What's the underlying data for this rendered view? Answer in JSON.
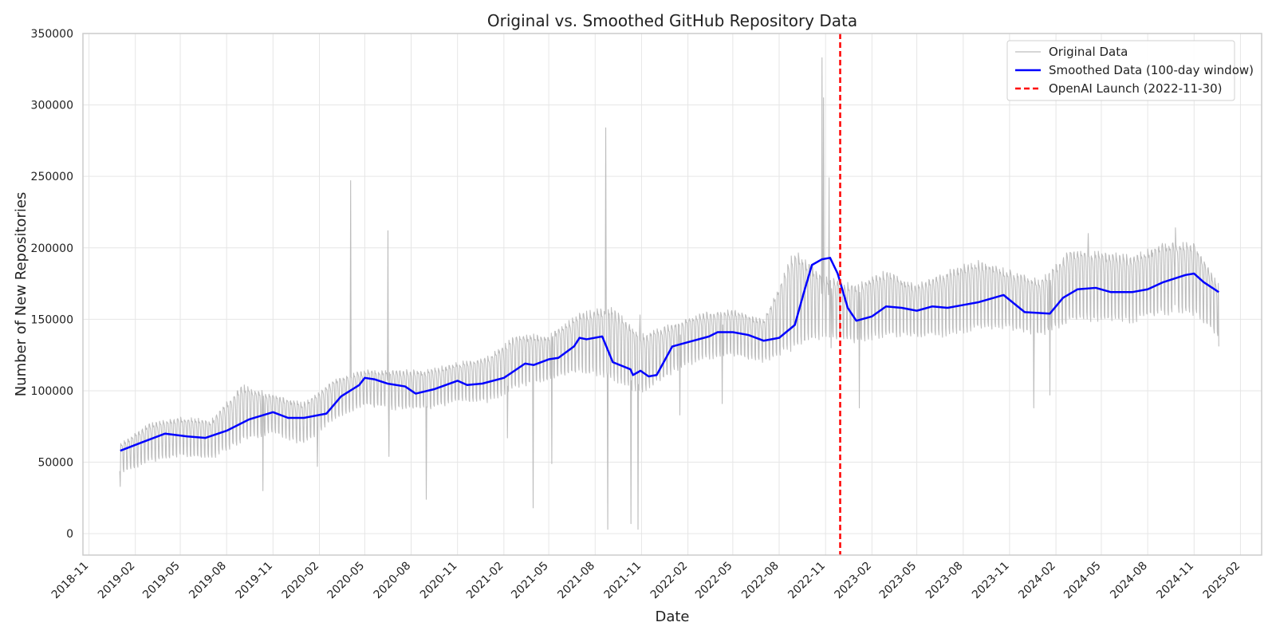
{
  "chart_data": {
    "type": "line",
    "title": "Original vs. Smoothed GitHub Repository Data",
    "xlabel": "Date",
    "ylabel": "Number of New Repositories",
    "x_axis_type": "date",
    "xlim": [
      "2018-10-20",
      "2025-03-15"
    ],
    "ylim": [
      -15000,
      350000
    ],
    "x_ticks": [
      "2018-11",
      "2019-02",
      "2019-05",
      "2019-08",
      "2019-11",
      "2020-02",
      "2020-05",
      "2020-08",
      "2020-11",
      "2021-02",
      "2021-05",
      "2021-08",
      "2021-11",
      "2022-02",
      "2022-05",
      "2022-08",
      "2022-11",
      "2023-02",
      "2023-05",
      "2023-08",
      "2023-11",
      "2024-02",
      "2024-05",
      "2024-08",
      "2024-11",
      "2025-02"
    ],
    "y_ticks": [
      0,
      50000,
      100000,
      150000,
      200000,
      250000,
      300000,
      350000
    ],
    "grid": true,
    "legend": {
      "position": "top-right"
    },
    "series": [
      {
        "name": "Original Data",
        "color": "#bdbdbd",
        "style": "solid",
        "weekly_range": [
          {
            "x": "2019-01-01",
            "low": 40000,
            "high": 63000
          },
          {
            "x": "2019-03-01",
            "low": 48000,
            "high": 78000
          },
          {
            "x": "2019-05-01",
            "low": 52000,
            "high": 82000
          },
          {
            "x": "2019-07-01",
            "low": 50000,
            "high": 80000
          },
          {
            "x": "2019-09-01",
            "low": 62000,
            "high": 105000
          },
          {
            "x": "2019-11-01",
            "low": 68000,
            "high": 98000
          },
          {
            "x": "2020-01-01",
            "low": 60000,
            "high": 92000
          },
          {
            "x": "2020-03-01",
            "low": 78000,
            "high": 108000
          },
          {
            "x": "2020-05-01",
            "low": 88000,
            "high": 115000
          },
          {
            "x": "2020-07-01",
            "low": 85000,
            "high": 115000
          },
          {
            "x": "2020-09-01",
            "low": 85000,
            "high": 115000
          },
          {
            "x": "2020-11-01",
            "low": 90000,
            "high": 120000
          },
          {
            "x": "2021-01-01",
            "low": 90000,
            "high": 125000
          },
          {
            "x": "2021-03-01",
            "low": 100000,
            "high": 140000
          },
          {
            "x": "2021-05-01",
            "low": 105000,
            "high": 140000
          },
          {
            "x": "2021-07-01",
            "low": 110000,
            "high": 155000
          },
          {
            "x": "2021-09-01",
            "low": 105000,
            "high": 160000
          },
          {
            "x": "2021-11-01",
            "low": 95000,
            "high": 140000
          },
          {
            "x": "2022-01-01",
            "low": 110000,
            "high": 148000
          },
          {
            "x": "2022-03-01",
            "low": 120000,
            "high": 155000
          },
          {
            "x": "2022-05-01",
            "low": 122000,
            "high": 158000
          },
          {
            "x": "2022-07-01",
            "low": 118000,
            "high": 150000
          },
          {
            "x": "2022-09-01",
            "low": 125000,
            "high": 200000
          },
          {
            "x": "2022-11-01",
            "low": 135000,
            "high": 180000
          },
          {
            "x": "2023-01-01",
            "low": 130000,
            "high": 175000
          },
          {
            "x": "2023-03-01",
            "low": 135000,
            "high": 185000
          },
          {
            "x": "2023-05-01",
            "low": 135000,
            "high": 175000
          },
          {
            "x": "2023-07-01",
            "low": 135000,
            "high": 185000
          },
          {
            "x": "2023-09-01",
            "low": 140000,
            "high": 192000
          },
          {
            "x": "2023-11-01",
            "low": 140000,
            "high": 185000
          },
          {
            "x": "2024-01-01",
            "low": 135000,
            "high": 178000
          },
          {
            "x": "2024-03-01",
            "low": 145000,
            "high": 200000
          },
          {
            "x": "2024-05-01",
            "low": 145000,
            "high": 198000
          },
          {
            "x": "2024-07-01",
            "low": 145000,
            "high": 195000
          },
          {
            "x": "2024-09-01",
            "low": 150000,
            "high": 205000
          },
          {
            "x": "2024-11-01",
            "low": 150000,
            "high": 205000
          },
          {
            "x": "2024-12-20",
            "low": 135000,
            "high": 175000
          }
        ],
        "spikes": [
          {
            "x": "2019-01-02",
            "y": 33000
          },
          {
            "x": "2019-10-12",
            "y": 30000
          },
          {
            "x": "2020-01-28",
            "y": 47000
          },
          {
            "x": "2020-04-03",
            "y": 247000
          },
          {
            "x": "2020-06-16",
            "y": 212000
          },
          {
            "x": "2020-06-18",
            "y": 54000
          },
          {
            "x": "2020-08-31",
            "y": 24000
          },
          {
            "x": "2021-02-08",
            "y": 67000
          },
          {
            "x": "2021-03-31",
            "y": 18000
          },
          {
            "x": "2021-05-07",
            "y": 49000
          },
          {
            "x": "2021-08-22",
            "y": 284000
          },
          {
            "x": "2021-08-26",
            "y": 3000
          },
          {
            "x": "2021-10-11",
            "y": 7000
          },
          {
            "x": "2021-10-25",
            "y": 3000
          },
          {
            "x": "2021-10-29",
            "y": 153000
          },
          {
            "x": "2022-01-16",
            "y": 83000
          },
          {
            "x": "2022-04-10",
            "y": 91000
          },
          {
            "x": "2022-10-25",
            "y": 333000
          },
          {
            "x": "2022-10-28",
            "y": 305000
          },
          {
            "x": "2022-11-08",
            "y": 249000
          },
          {
            "x": "2022-11-12",
            "y": 130000
          },
          {
            "x": "2023-01-07",
            "y": 88000
          },
          {
            "x": "2023-12-19",
            "y": 88000
          },
          {
            "x": "2024-01-20",
            "y": 97000
          },
          {
            "x": "2024-04-05",
            "y": 210000
          },
          {
            "x": "2024-09-25",
            "y": 214000
          },
          {
            "x": "2024-12-20",
            "y": 131000
          }
        ]
      },
      {
        "name": "Smoothed Data (100-day window)",
        "color": "#0000ff",
        "style": "solid",
        "points": [
          {
            "x": "2019-01-02",
            "y": 58000
          },
          {
            "x": "2019-02-15",
            "y": 64000
          },
          {
            "x": "2019-04-01",
            "y": 70000
          },
          {
            "x": "2019-05-15",
            "y": 68000
          },
          {
            "x": "2019-06-20",
            "y": 67000
          },
          {
            "x": "2019-08-01",
            "y": 72000
          },
          {
            "x": "2019-09-15",
            "y": 80000
          },
          {
            "x": "2019-11-01",
            "y": 85000
          },
          {
            "x": "2019-12-01",
            "y": 81000
          },
          {
            "x": "2020-01-01",
            "y": 81000
          },
          {
            "x": "2020-02-15",
            "y": 84000
          },
          {
            "x": "2020-03-15",
            "y": 96000
          },
          {
            "x": "2020-04-20",
            "y": 104000
          },
          {
            "x": "2020-05-01",
            "y": 109000
          },
          {
            "x": "2020-05-20",
            "y": 108000
          },
          {
            "x": "2020-06-15",
            "y": 105000
          },
          {
            "x": "2020-07-20",
            "y": 103000
          },
          {
            "x": "2020-08-10",
            "y": 98000
          },
          {
            "x": "2020-09-15",
            "y": 101000
          },
          {
            "x": "2020-11-01",
            "y": 107000
          },
          {
            "x": "2020-11-20",
            "y": 104000
          },
          {
            "x": "2020-12-20",
            "y": 105000
          },
          {
            "x": "2021-02-01",
            "y": 109000
          },
          {
            "x": "2021-03-15",
            "y": 119000
          },
          {
            "x": "2021-04-01",
            "y": 118000
          },
          {
            "x": "2021-05-01",
            "y": 122000
          },
          {
            "x": "2021-05-20",
            "y": 123000
          },
          {
            "x": "2021-06-20",
            "y": 131000
          },
          {
            "x": "2021-07-01",
            "y": 137000
          },
          {
            "x": "2021-07-15",
            "y": 136000
          },
          {
            "x": "2021-08-15",
            "y": 138000
          },
          {
            "x": "2021-09-05",
            "y": 120000
          },
          {
            "x": "2021-10-10",
            "y": 115000
          },
          {
            "x": "2021-10-15",
            "y": 111000
          },
          {
            "x": "2021-10-30",
            "y": 114000
          },
          {
            "x": "2021-11-15",
            "y": 110000
          },
          {
            "x": "2021-12-01",
            "y": 111000
          },
          {
            "x": "2022-01-01",
            "y": 131000
          },
          {
            "x": "2022-02-01",
            "y": 134000
          },
          {
            "x": "2022-03-15",
            "y": 138000
          },
          {
            "x": "2022-04-01",
            "y": 141000
          },
          {
            "x": "2022-05-01",
            "y": 141000
          },
          {
            "x": "2022-06-01",
            "y": 139000
          },
          {
            "x": "2022-07-01",
            "y": 135000
          },
          {
            "x": "2022-08-01",
            "y": 137000
          },
          {
            "x": "2022-09-01",
            "y": 146000
          },
          {
            "x": "2022-09-20",
            "y": 170000
          },
          {
            "x": "2022-10-05",
            "y": 188000
          },
          {
            "x": "2022-10-25",
            "y": 192000
          },
          {
            "x": "2022-11-10",
            "y": 193000
          },
          {
            "x": "2022-11-25",
            "y": 182000
          },
          {
            "x": "2022-12-15",
            "y": 158000
          },
          {
            "x": "2023-01-01",
            "y": 149000
          },
          {
            "x": "2023-02-01",
            "y": 152000
          },
          {
            "x": "2023-03-01",
            "y": 159000
          },
          {
            "x": "2023-04-01",
            "y": 158000
          },
          {
            "x": "2023-05-01",
            "y": 156000
          },
          {
            "x": "2023-06-01",
            "y": 159000
          },
          {
            "x": "2023-07-01",
            "y": 158000
          },
          {
            "x": "2023-08-01",
            "y": 160000
          },
          {
            "x": "2023-09-01",
            "y": 162000
          },
          {
            "x": "2023-10-20",
            "y": 167000
          },
          {
            "x": "2023-12-01",
            "y": 155000
          },
          {
            "x": "2024-01-20",
            "y": 154000
          },
          {
            "x": "2024-02-15",
            "y": 165000
          },
          {
            "x": "2024-03-15",
            "y": 171000
          },
          {
            "x": "2024-04-20",
            "y": 172000
          },
          {
            "x": "2024-05-20",
            "y": 169000
          },
          {
            "x": "2024-07-01",
            "y": 169000
          },
          {
            "x": "2024-08-01",
            "y": 171000
          },
          {
            "x": "2024-09-01",
            "y": 176000
          },
          {
            "x": "2024-10-15",
            "y": 181000
          },
          {
            "x": "2024-11-01",
            "y": 182000
          },
          {
            "x": "2024-11-20",
            "y": 176000
          },
          {
            "x": "2024-12-20",
            "y": 169000
          }
        ]
      },
      {
        "name": "OpenAI Launch (2022-11-30)",
        "color": "#ff0000",
        "style": "dashed",
        "vline_x": "2022-11-30"
      }
    ]
  }
}
